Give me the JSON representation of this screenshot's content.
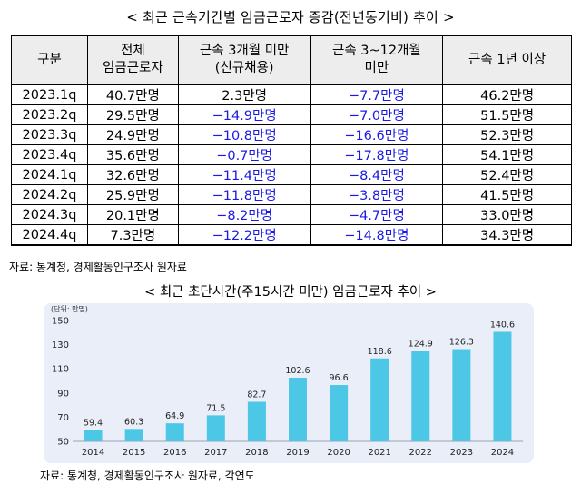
{
  "table_section": {
    "title": "< 최근 근속기간별 임금근로자 증감(전년동기비) 추이 >",
    "headers": [
      "구분",
      "전체\n임금근로자",
      "근속 3개월 미만\n(신규채용)",
      "근속 3~12개월\n미만",
      "근속 1년 이상"
    ],
    "rows": [
      {
        "period": "2023.1q",
        "total": "40.7만명",
        "under3m": "2.3만명",
        "m3to12": "−7.7만명",
        "over1y": "46.2만명"
      },
      {
        "period": "2023.2q",
        "total": "29.5만명",
        "under3m": "−14.9만명",
        "m3to12": "−7.0만명",
        "over1y": "51.5만명"
      },
      {
        "period": "2023.3q",
        "total": "24.9만명",
        "under3m": "−10.8만명",
        "m3to12": "−16.6만명",
        "over1y": "52.3만명"
      },
      {
        "period": "2023.4q",
        "total": "35.6만명",
        "under3m": "−0.7만명",
        "m3to12": "−17.8만명",
        "over1y": "54.1만명"
      },
      {
        "period": "2024.1q",
        "total": "32.6만명",
        "under3m": "−11.4만명",
        "m3to12": "−8.4만명",
        "over1y": "52.4만명"
      },
      {
        "period": "2024.2q",
        "total": "25.9만명",
        "under3m": "−11.8만명",
        "m3to12": "−3.8만명",
        "over1y": "41.5만명"
      },
      {
        "period": "2024.3q",
        "total": "20.1만명",
        "under3m": "−8.2만명",
        "m3to12": "−4.7만명",
        "over1y": "33.0만명"
      },
      {
        "period": "2024.4q",
        "total": "7.3만명",
        "under3m": "−12.2만명",
        "m3to12": "−14.8만명",
        "over1y": "34.3만명"
      }
    ],
    "source": "자료: 통계청, 경제활동인구조사 원자료"
  },
  "chart_section": {
    "title": "< 최근 초단시간(주15시간 미만) 임금근로자 추이 >",
    "source": "자료: 통계청, 경제활동인구조사 원자료, 각연도"
  },
  "colors": {
    "bar": "#4cc7e6",
    "negative": "#1a1ae6",
    "chart_bg": "#e9eef8",
    "header_bg": "#ededed"
  },
  "chart_data": {
    "type": "bar",
    "unit_label": "(단위: 만명)",
    "categories": [
      "2014",
      "2015",
      "2016",
      "2017",
      "2018",
      "2019",
      "2020",
      "2021",
      "2022",
      "2023",
      "2024"
    ],
    "values": [
      59.4,
      60.3,
      64.9,
      71.5,
      82.7,
      102.6,
      96.6,
      118.6,
      124.9,
      126.3,
      140.6
    ],
    "value_labels": [
      "59.4",
      "60.3",
      "64.9",
      "71.5",
      "82.7",
      "102.6",
      "96.6",
      "118.6",
      "124.9",
      "126.3",
      "140.6"
    ],
    "ylim": [
      50,
      150
    ],
    "yticks": [
      "50",
      "70",
      "90",
      "110",
      "130",
      "150"
    ],
    "ytick_values": [
      50,
      70,
      90,
      110,
      130,
      150
    ],
    "title": "",
    "xlabel": "",
    "ylabel": ""
  }
}
